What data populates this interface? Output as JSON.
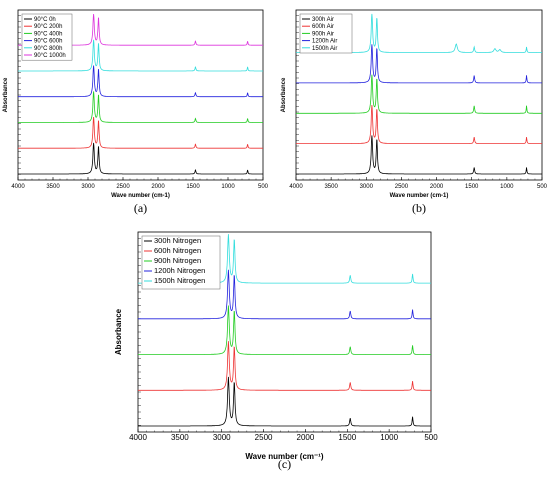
{
  "chart_data": [
    {
      "type": "line",
      "panel_label": "(a)",
      "xlabel": "Wave number (cm-1)",
      "ylabel": "Absorbance",
      "xlim": [
        4000,
        500
      ],
      "x_ticks": [
        4000,
        3500,
        3000,
        2500,
        2000,
        1500,
        1000,
        500
      ],
      "legend_position": "top-left",
      "peaks": [
        2920,
        2850,
        1465,
        720
      ],
      "series": [
        {
          "name": "90°C 0h",
          "color": "#000000",
          "peak_heights": [
            0.95,
            0.85,
            0.25,
            0.25
          ]
        },
        {
          "name": "90°C 200h",
          "color": "#ee3333",
          "peak_heights": [
            0.95,
            0.85,
            0.25,
            0.25
          ]
        },
        {
          "name": "90°C 400h",
          "color": "#22cc22",
          "peak_heights": [
            0.95,
            0.85,
            0.25,
            0.25
          ]
        },
        {
          "name": "90°C 600h",
          "color": "#2222dd",
          "peak_heights": [
            0.95,
            0.85,
            0.25,
            0.25
          ]
        },
        {
          "name": "90°C 800h",
          "color": "#33dddd",
          "peak_heights": [
            0.95,
            0.85,
            0.25,
            0.25
          ]
        },
        {
          "name": "90°C 1000h",
          "color": "#dd33dd",
          "peak_heights": [
            0.95,
            0.85,
            0.25,
            0.25
          ]
        }
      ]
    },
    {
      "type": "line",
      "panel_label": "(b)",
      "xlabel": "Wave number (cm-1)",
      "ylabel": "Absorbance",
      "xlim": [
        4000,
        500
      ],
      "x_ticks": [
        4000,
        3500,
        3000,
        2500,
        2000,
        1500,
        1000,
        500
      ],
      "legend_position": "top-left",
      "peaks": [
        2920,
        2850,
        1465,
        720
      ],
      "series": [
        {
          "name": "300h Air",
          "color": "#000000",
          "peak_heights": [
            1.0,
            0.9,
            0.35,
            0.35
          ]
        },
        {
          "name": "600h Air",
          "color": "#ee3333",
          "peak_heights": [
            1.0,
            0.9,
            0.35,
            0.35
          ]
        },
        {
          "name": "900h Air",
          "color": "#22cc22",
          "peak_heights": [
            1.0,
            0.9,
            0.4,
            0.4
          ]
        },
        {
          "name": "1200h Air",
          "color": "#2222dd",
          "peak_heights": [
            1.0,
            0.9,
            0.4,
            0.4
          ]
        },
        {
          "name": "1500h Air",
          "color": "#33dddd",
          "peak_heights": [
            1.0,
            0.9,
            0.3,
            0.3
          ],
          "extra_peaks": [
            [
              1720,
              0.45
            ],
            [
              1170,
              0.2
            ],
            [
              1100,
              0.15
            ]
          ]
        }
      ]
    },
    {
      "type": "line",
      "panel_label": "(c)",
      "xlabel": "Wave number (cm⁻¹)",
      "ylabel": "Absorbance",
      "xlim": [
        4000,
        500
      ],
      "x_ticks": [
        4000,
        3500,
        3000,
        2500,
        2000,
        1500,
        1000,
        500
      ],
      "legend_position": "top-left",
      "peaks": [
        2920,
        2850,
        1465,
        720
      ],
      "series": [
        {
          "name": "300h Nitrogen",
          "color": "#000000",
          "peak_heights": [
            1.0,
            0.9,
            0.3,
            0.35
          ]
        },
        {
          "name": "600h Nitrogen",
          "color": "#ee3333",
          "peak_heights": [
            1.0,
            0.9,
            0.3,
            0.35
          ]
        },
        {
          "name": "900h Nitrogen",
          "color": "#22cc22",
          "peak_heights": [
            1.0,
            0.9,
            0.3,
            0.35
          ]
        },
        {
          "name": "1200h Nitrogen",
          "color": "#2222dd",
          "peak_heights": [
            1.0,
            0.9,
            0.3,
            0.35
          ]
        },
        {
          "name": "1500h Nitrogen",
          "color": "#33dddd",
          "peak_heights": [
            1.0,
            0.9,
            0.3,
            0.35
          ]
        }
      ]
    }
  ]
}
